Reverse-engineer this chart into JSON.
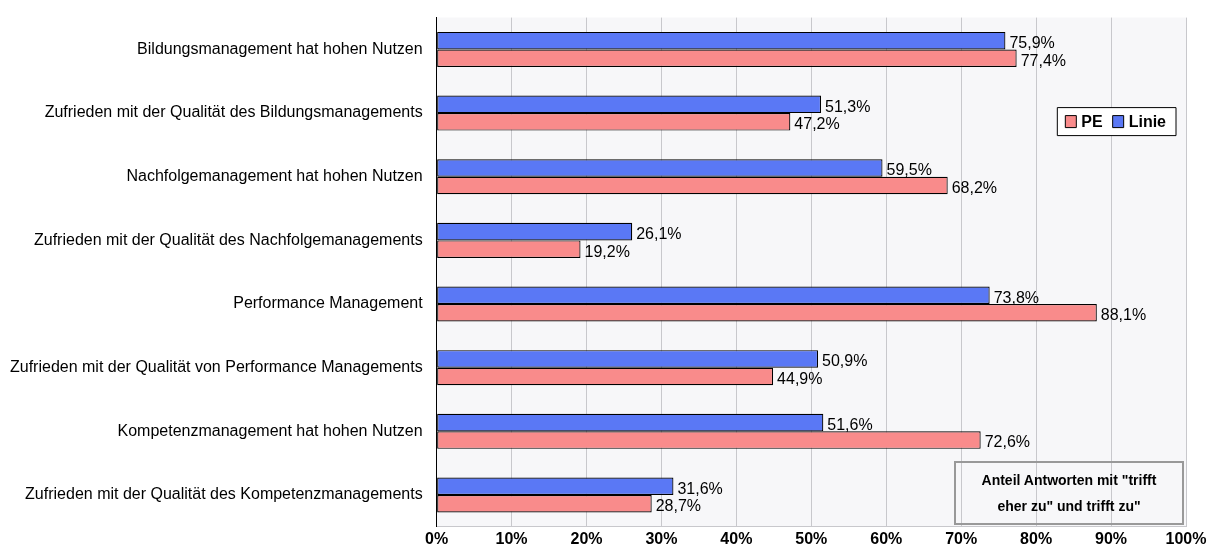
{
  "chart_data": {
    "type": "bar",
    "orientation": "horizontal",
    "categories": [
      "Bildungsmanagement hat hohen Nutzen",
      "Zufrieden mit der Qualität des Bildungsmanagements",
      "Nachfolgemanagement hat hohen Nutzen",
      "Zufrieden mit der Qualität des Nachfolgemanagements",
      "Performance Management",
      "Zufrieden mit der Qualität von Performance Managements",
      "Kompetenzmanagement hat hohen Nutzen",
      "Zufrieden mit der Qualität des Kompetenzmanagements"
    ],
    "series": [
      {
        "name": "Linie",
        "color": "#5a78f5",
        "values": [
          75.9,
          51.3,
          59.5,
          26.1,
          73.8,
          50.9,
          51.6,
          31.6
        ],
        "value_labels": [
          "75,9%",
          "51,3%",
          "59,5%",
          "26,1%",
          "73,8%",
          "50,9%",
          "51,6%",
          "31,6%"
        ]
      },
      {
        "name": "PE",
        "color": "#f98b8b",
        "values": [
          77.4,
          47.2,
          68.2,
          19.2,
          88.1,
          44.9,
          72.6,
          28.7
        ],
        "value_labels": [
          "77,4%",
          "47,2%",
          "68,2%",
          "19,2%",
          "88,1%",
          "44,9%",
          "72,6%",
          "28,7%"
        ]
      }
    ],
    "xlim": [
      0,
      100
    ],
    "xticks": [
      {
        "value": 0,
        "label": "0%"
      },
      {
        "value": 10,
        "label": "10%"
      },
      {
        "value": 20,
        "label": "20%"
      },
      {
        "value": 30,
        "label": "30%"
      },
      {
        "value": 40,
        "label": "40%"
      },
      {
        "value": 50,
        "label": "50%"
      },
      {
        "value": 60,
        "label": "60%"
      },
      {
        "value": 70,
        "label": "70%"
      },
      {
        "value": 80,
        "label": "80%"
      },
      {
        "value": 90,
        "label": "90%"
      },
      {
        "value": 100,
        "label": "100%"
      }
    ],
    "grid": "x",
    "legend": "top right",
    "annotations": [
      "Anteil Antworten mit \"trifft eher zu\" und trifft zu\""
    ]
  }
}
